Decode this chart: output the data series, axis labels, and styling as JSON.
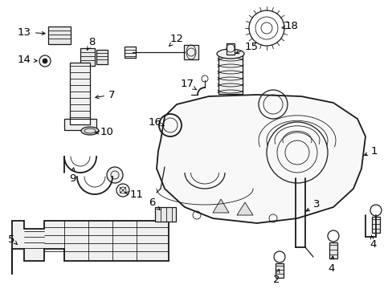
{
  "background_color": "#ffffff",
  "line_color": "#1a1a1a",
  "figsize": [
    4.89,
    3.6
  ],
  "dpi": 100,
  "label_fontsize": 9.5
}
